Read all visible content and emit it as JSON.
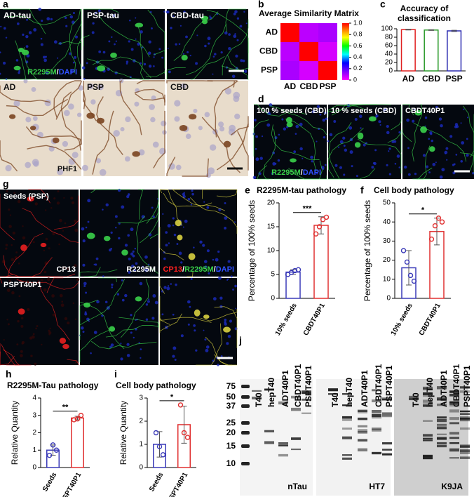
{
  "figure": {
    "a": {
      "label": "a",
      "top_titles": [
        "AD-tau",
        "PSP-tau",
        "CBD-tau"
      ],
      "bottom_titles": [
        "AD",
        "PSP",
        "CBD"
      ],
      "stain": [
        "R2295M",
        "/",
        "DAPI"
      ],
      "stain_colors": [
        "#3ad04a",
        "#ffffff",
        "#3050ff"
      ],
      "ihc_stain": "PHF1"
    },
    "d": {
      "label": "d",
      "titles": [
        "100 % seeds (CBD)",
        "10 % seeds (CBD)",
        "CBDT40P1"
      ],
      "stain": [
        "R2295M",
        "/",
        "DAPI"
      ],
      "stain_colors": [
        "#3ad04a",
        "#ffffff",
        "#3050ff"
      ]
    },
    "g": {
      "label": "g",
      "row_titles": [
        "Seeds (PSP)",
        "PSPT40P1"
      ],
      "channels": [
        "CP13",
        "R2295M"
      ],
      "merge": [
        "CP13",
        "/",
        "R2295M",
        "/",
        "DAPI"
      ],
      "merge_colors": [
        "#ff2020",
        "#ffffff",
        "#3ad04a",
        "#ffffff",
        "#3050ff"
      ]
    },
    "j": {
      "label": "j",
      "lanes": [
        "T40",
        "hepT40",
        "ADT40P1",
        "CBDT40P1",
        "PSPT40P1"
      ],
      "markers": [
        75,
        50,
        37,
        25,
        20,
        15,
        10
      ],
      "antibodies": [
        "nTau",
        "HT7",
        "K9JA"
      ]
    }
  },
  "chart_data": [
    {
      "type": "heatmap",
      "panel": "b",
      "title": "Average Similarity Matrix",
      "rows": [
        "AD",
        "CBD",
        "PSP"
      ],
      "columns": [
        "AD",
        "CBD",
        "PSP"
      ],
      "matrix": [
        [
          1,
          0.08,
          0.1
        ],
        [
          0.08,
          1,
          0.05
        ],
        [
          0.1,
          0.05,
          1
        ]
      ],
      "clim": [
        0,
        1
      ],
      "cticks": [
        0,
        0.2,
        0.4,
        0.6,
        0.8,
        {
          "value": 1,
          "label": "1.0"
        }
      ]
    },
    {
      "type": "bar",
      "panel": "c",
      "title": "Accuracy of classification",
      "categories": [
        "AD",
        "CBD",
        "PSP"
      ],
      "values": [
        98,
        97,
        95
      ],
      "errors": [
        1,
        1,
        1.5
      ],
      "colors": [
        "#e02020",
        "#2a9a2a",
        "#2a2ab0"
      ],
      "ylim": [
        0,
        100
      ],
      "yticks": [
        0,
        20,
        40,
        60,
        80,
        100
      ]
    },
    {
      "type": "bar",
      "panel": "e",
      "title": "R2295M-tau pathology",
      "y_label": "Percentage of 100% seeds",
      "categories": [
        "10% seeds",
        "CBDT40P1"
      ],
      "values": [
        5.5,
        15.3
      ],
      "errors": [
        0.5,
        1.8
      ],
      "points": [
        [
          5,
          5.4,
          5.8,
          6
        ],
        [
          13.5,
          15,
          16.5,
          17
        ]
      ],
      "colors": [
        "#3a3ab8",
        "#e03030"
      ],
      "ylim": [
        0,
        20
      ],
      "yticks": [
        0,
        5,
        10,
        15,
        20
      ],
      "significance": "***"
    },
    {
      "type": "bar",
      "panel": "f",
      "title": "Cell body pathology",
      "y_label": "Percentage of 100% seeds",
      "categories": [
        "10% seeds",
        "CBDT40P1"
      ],
      "values": [
        16,
        35
      ],
      "errors": [
        9,
        7
      ],
      "points": [
        [
          25,
          19,
          12,
          9
        ],
        [
          31,
          38,
          42,
          40
        ]
      ],
      "colors": [
        "#3a3ab8",
        "#e03030"
      ],
      "ylim": [
        0,
        50
      ],
      "yticks": [
        0,
        10,
        20,
        30,
        40,
        50
      ],
      "significance": "*"
    },
    {
      "type": "bar",
      "panel": "h",
      "title": "R2295M-Tau pathology",
      "y_label": "Relative Quantity",
      "categories": [
        "Seeds",
        "PSPT40P1"
      ],
      "values": [
        1,
        2.85
      ],
      "errors": [
        0.3,
        0.1
      ],
      "points": [
        [
          0.7,
          1.3,
          1.0
        ],
        [
          2.75,
          2.8,
          3.0
        ]
      ],
      "colors": [
        "#3a3ab8",
        "#e03030"
      ],
      "ylim": [
        0,
        4
      ],
      "yticks": [
        0,
        1,
        2,
        3,
        4
      ],
      "significance": "**"
    },
    {
      "type": "bar",
      "panel": "i",
      "title": "Cell body pathology",
      "y_label": "Relative Quantity",
      "categories": [
        "Seeds",
        "PSPT40P1"
      ],
      "values": [
        1,
        1.85
      ],
      "errors": [
        0.55,
        0.8
      ],
      "points": [
        [
          1.5,
          0.9,
          0.55
        ],
        [
          2.7,
          1.5,
          1.3
        ]
      ],
      "colors": [
        "#3a3ab8",
        "#e03030"
      ],
      "ylim": [
        0,
        3
      ],
      "yticks": [
        0,
        1,
        2,
        3
      ],
      "significance": "*"
    }
  ]
}
